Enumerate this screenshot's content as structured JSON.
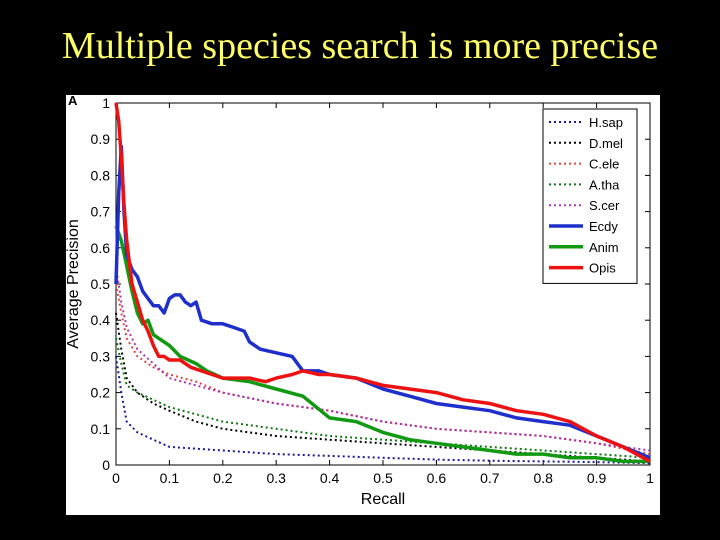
{
  "slide": {
    "title": "Multiple species search is more precise",
    "panel_label": "A"
  },
  "chart_data": {
    "type": "line",
    "title": "",
    "xlabel": "Recall",
    "ylabel": "Average Precision",
    "xlim": [
      0,
      1
    ],
    "ylim": [
      0,
      1
    ],
    "x_ticks": [
      "0",
      "0.1",
      "0.2",
      "0.3",
      "0.4",
      "0.5",
      "0.6",
      "0.7",
      "0.8",
      "0.9",
      "1"
    ],
    "y_ticks": [
      "0",
      "0.1",
      "0.2",
      "0.3",
      "0.4",
      "0.5",
      "0.6",
      "0.7",
      "0.8",
      "0.9",
      "1"
    ],
    "legend_position": "top-right",
    "series": [
      {
        "name": "H.sap",
        "color": "#1a1a99",
        "style": "dotted",
        "x": [
          0,
          0.01,
          0.02,
          0.04,
          0.07,
          0.1,
          0.15,
          0.2,
          0.25,
          0.3,
          0.4,
          0.5,
          0.6,
          0.7,
          0.8,
          0.9,
          1.0
        ],
        "y": [
          0.3,
          0.2,
          0.12,
          0.09,
          0.07,
          0.05,
          0.045,
          0.04,
          0.035,
          0.03,
          0.025,
          0.02,
          0.015,
          0.012,
          0.01,
          0.008,
          0.005
        ]
      },
      {
        "name": "D.mel",
        "color": "#000000",
        "style": "dotted",
        "x": [
          0,
          0.01,
          0.02,
          0.04,
          0.07,
          0.1,
          0.15,
          0.2,
          0.25,
          0.3,
          0.4,
          0.5,
          0.6,
          0.7,
          0.8,
          0.9,
          1.0
        ],
        "y": [
          0.42,
          0.32,
          0.24,
          0.2,
          0.17,
          0.15,
          0.12,
          0.1,
          0.09,
          0.08,
          0.07,
          0.06,
          0.05,
          0.04,
          0.03,
          0.02,
          0.01
        ]
      },
      {
        "name": "C.ele",
        "color": "#dd4444",
        "style": "dotted",
        "x": [
          0,
          0.01,
          0.02,
          0.04,
          0.07,
          0.1,
          0.15,
          0.2,
          0.3,
          0.4,
          0.5,
          0.6,
          0.7,
          0.8,
          0.9,
          1.0
        ],
        "y": [
          0.5,
          0.42,
          0.35,
          0.3,
          0.27,
          0.25,
          0.23,
          0.2,
          0.17,
          0.15,
          0.12,
          0.1,
          0.09,
          0.08,
          0.06,
          0.03
        ]
      },
      {
        "name": "A.tha",
        "color": "#117711",
        "style": "dotted",
        "x": [
          0,
          0.01,
          0.02,
          0.04,
          0.07,
          0.1,
          0.15,
          0.2,
          0.3,
          0.4,
          0.5,
          0.6,
          0.7,
          0.8,
          0.9,
          1.0
        ],
        "y": [
          0.35,
          0.28,
          0.22,
          0.2,
          0.18,
          0.16,
          0.14,
          0.12,
          0.1,
          0.08,
          0.07,
          0.06,
          0.05,
          0.04,
          0.03,
          0.02
        ]
      },
      {
        "name": "S.cer",
        "color": "#aa33aa",
        "style": "dotted",
        "x": [
          0,
          0.01,
          0.02,
          0.04,
          0.07,
          0.1,
          0.15,
          0.2,
          0.3,
          0.4,
          0.5,
          0.6,
          0.7,
          0.8,
          0.9,
          1.0
        ],
        "y": [
          0.55,
          0.45,
          0.38,
          0.32,
          0.28,
          0.24,
          0.22,
          0.2,
          0.17,
          0.15,
          0.12,
          0.1,
          0.09,
          0.08,
          0.06,
          0.04
        ]
      },
      {
        "name": "Ecdy",
        "color": "#1f2fcc",
        "style": "solid",
        "x": [
          0,
          0.005,
          0.01,
          0.015,
          0.02,
          0.03,
          0.04,
          0.05,
          0.06,
          0.07,
          0.08,
          0.09,
          0.1,
          0.11,
          0.12,
          0.13,
          0.14,
          0.15,
          0.16,
          0.18,
          0.2,
          0.22,
          0.24,
          0.25,
          0.27,
          0.3,
          0.33,
          0.35,
          0.38,
          0.4,
          0.45,
          0.5,
          0.55,
          0.6,
          0.65,
          0.7,
          0.75,
          0.8,
          0.85,
          0.9,
          0.95,
          1.0
        ],
        "y": [
          0.5,
          0.75,
          0.88,
          0.7,
          0.58,
          0.54,
          0.52,
          0.48,
          0.46,
          0.44,
          0.44,
          0.42,
          0.46,
          0.47,
          0.47,
          0.45,
          0.44,
          0.45,
          0.4,
          0.39,
          0.39,
          0.38,
          0.37,
          0.34,
          0.32,
          0.31,
          0.3,
          0.26,
          0.26,
          0.25,
          0.24,
          0.21,
          0.19,
          0.17,
          0.16,
          0.15,
          0.13,
          0.12,
          0.11,
          0.08,
          0.05,
          0.02
        ]
      },
      {
        "name": "Anim",
        "color": "#119911",
        "style": "solid",
        "x": [
          0,
          0.01,
          0.02,
          0.03,
          0.04,
          0.05,
          0.06,
          0.07,
          0.08,
          0.1,
          0.12,
          0.15,
          0.17,
          0.2,
          0.25,
          0.3,
          0.35,
          0.4,
          0.45,
          0.5,
          0.55,
          0.6,
          0.65,
          0.7,
          0.75,
          0.8,
          0.85,
          0.9,
          0.95,
          1.0
        ],
        "y": [
          0.66,
          0.62,
          0.55,
          0.48,
          0.42,
          0.39,
          0.4,
          0.36,
          0.35,
          0.33,
          0.3,
          0.28,
          0.26,
          0.24,
          0.23,
          0.21,
          0.19,
          0.13,
          0.12,
          0.09,
          0.07,
          0.06,
          0.05,
          0.04,
          0.03,
          0.03,
          0.02,
          0.02,
          0.01,
          0.01
        ]
      },
      {
        "name": "Opis",
        "color": "#ee1111",
        "style": "solid",
        "x": [
          0,
          0.005,
          0.01,
          0.015,
          0.02,
          0.03,
          0.04,
          0.05,
          0.06,
          0.07,
          0.08,
          0.09,
          0.1,
          0.12,
          0.14,
          0.16,
          0.18,
          0.2,
          0.22,
          0.25,
          0.28,
          0.3,
          0.33,
          0.35,
          0.38,
          0.4,
          0.45,
          0.5,
          0.55,
          0.6,
          0.65,
          0.7,
          0.75,
          0.8,
          0.85,
          0.9,
          0.95,
          1.0
        ],
        "y": [
          1.0,
          0.95,
          0.85,
          0.72,
          0.62,
          0.5,
          0.45,
          0.4,
          0.37,
          0.33,
          0.3,
          0.3,
          0.29,
          0.29,
          0.27,
          0.26,
          0.25,
          0.24,
          0.24,
          0.24,
          0.23,
          0.24,
          0.25,
          0.26,
          0.25,
          0.25,
          0.24,
          0.22,
          0.21,
          0.2,
          0.18,
          0.17,
          0.15,
          0.14,
          0.12,
          0.08,
          0.05,
          0.01
        ]
      }
    ]
  }
}
